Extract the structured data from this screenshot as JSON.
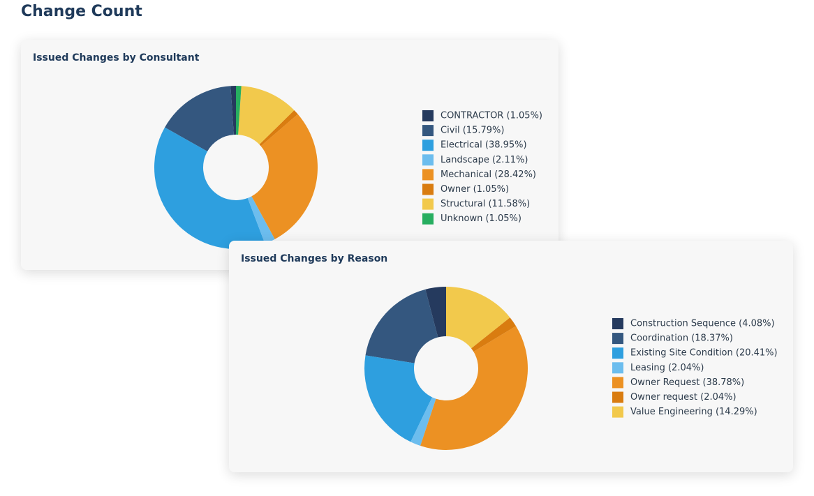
{
  "title": "Change Count",
  "chart_data": [
    {
      "type": "donut",
      "title": "Issued Changes by Consultant",
      "categories": [
        "CONTRACTOR (1.05%)",
        "Civil (15.79%)",
        "Electrical (38.95%)",
        "Landscape (2.11%)",
        "Mechanical (28.42%)",
        "Owner (1.05%)",
        "Structural (11.58%)",
        "Unknown (1.05%)"
      ],
      "values": [
        1.05,
        15.79,
        38.95,
        2.11,
        28.42,
        1.05,
        11.58,
        1.05
      ],
      "colors": [
        "#253a5e",
        "#34577f",
        "#2e9fdf",
        "#6cbdee",
        "#ec9123",
        "#d97c10",
        "#f2c94c",
        "#27ae60"
      ]
    },
    {
      "type": "donut",
      "title": "Issued Changes by Reason",
      "categories": [
        "Construction Sequence (4.08%)",
        "Coordination (18.37%)",
        "Existing Site Condition (20.41%)",
        "Leasing (2.04%)",
        "Owner Request (38.78%)",
        "Owner request (2.04%)",
        "Value Engineering (14.29%)"
      ],
      "values": [
        4.08,
        18.37,
        20.41,
        2.04,
        38.78,
        2.04,
        14.29
      ],
      "colors": [
        "#253a5e",
        "#34577f",
        "#2e9fdf",
        "#6cbdee",
        "#ec9123",
        "#d97c10",
        "#f2c94c"
      ]
    }
  ]
}
